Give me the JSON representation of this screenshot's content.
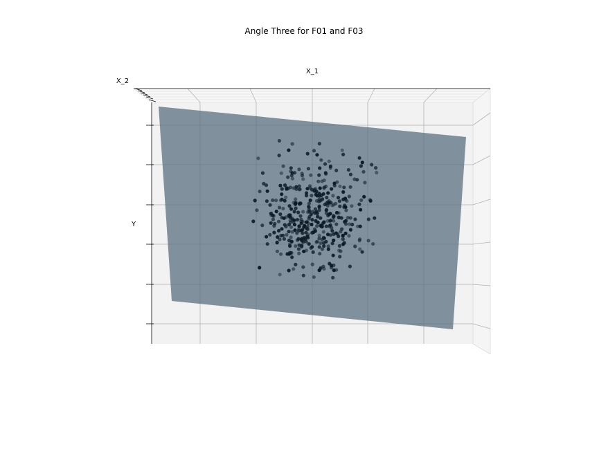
{
  "chart_data": {
    "type": "scatter",
    "title": "Angle Three for F01 and F03",
    "xlabel": "X_1",
    "zlabel": "X_2",
    "ylabel": "Y",
    "view": "3d-front-elevated",
    "grid": true,
    "legend": "none",
    "colors": {
      "pane": "#f2f2f2",
      "gridline": "#b0b0b0",
      "plane": "#5a7080",
      "points": "#0d1b26"
    },
    "plane": {
      "type": "regression-surface",
      "color": "#5a7080"
    },
    "point_count": 0,
    "points": []
  }
}
